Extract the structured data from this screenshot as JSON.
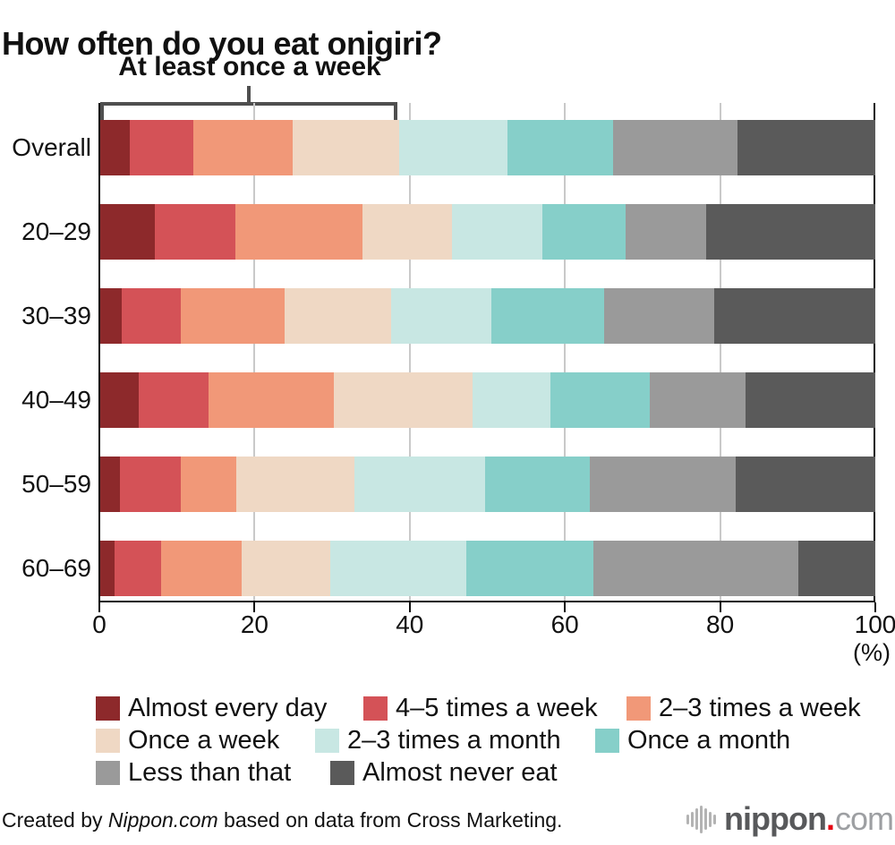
{
  "title": "How often do you eat onigiri?",
  "annotation": {
    "label": "At least once a week"
  },
  "chart_data": {
    "type": "bar",
    "stacked": true,
    "orientation": "horizontal",
    "title": "How often do you eat onigiri?",
    "unit": "%",
    "xlabel": "(%)",
    "xlim": [
      0,
      100
    ],
    "xticks": [
      0,
      20,
      40,
      60,
      80,
      100
    ],
    "grid": "vertical",
    "legend_position": "bottom",
    "categories": [
      "Overall",
      "20–29",
      "30–39",
      "40–49",
      "50–59",
      "60–69"
    ],
    "series": [
      {
        "name": "Almost every day",
        "color": "#8d292b",
        "values": [
          3.8,
          7.1,
          2.8,
          5.0,
          2.5,
          1.9
        ]
      },
      {
        "name": "4–5 times a week",
        "color": "#d45257",
        "values": [
          8.2,
          10.3,
          7.6,
          9.0,
          7.9,
          6.0
        ]
      },
      {
        "name": "2–3 times a week",
        "color": "#f19878",
        "values": [
          12.8,
          16.4,
          13.4,
          16.1,
          7.1,
          10.3
        ]
      },
      {
        "name": "Once a week",
        "color": "#efd8c4",
        "values": [
          13.8,
          11.6,
          13.7,
          17.9,
          15.3,
          11.5
        ]
      },
      {
        "name": "2–3 times a month",
        "color": "#c8e7e3",
        "values": [
          14.0,
          11.6,
          13.0,
          10.1,
          16.9,
          17.5
        ]
      },
      {
        "name": "Once a month",
        "color": "#86cfc9",
        "values": [
          13.6,
          10.8,
          14.5,
          12.8,
          13.5,
          16.4
        ]
      },
      {
        "name": "Less than that",
        "color": "#9a9a9a",
        "values": [
          16.0,
          10.4,
          14.2,
          12.4,
          18.8,
          26.5
        ]
      },
      {
        "name": "Almost never eat",
        "color": "#5a5a5a",
        "values": [
          17.8,
          21.8,
          20.8,
          16.7,
          18.0,
          9.9
        ]
      }
    ]
  },
  "footer": {
    "credit_prefix": "Created by ",
    "credit_source": "Nippon.com",
    "credit_suffix": " based on data from Cross Marketing.",
    "logo": {
      "text_main": "nippon",
      "text_dot": ".",
      "text_tld": "com",
      "dot_color": "#e60012"
    }
  }
}
